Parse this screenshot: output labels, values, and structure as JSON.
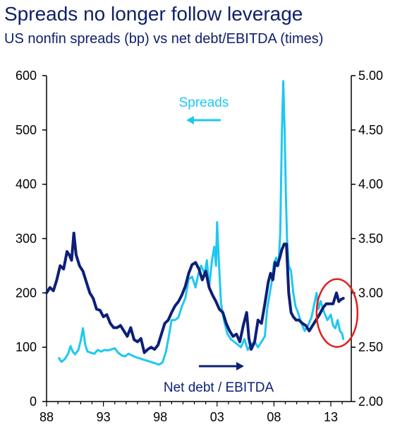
{
  "title": "Spreads no longer follow leverage",
  "subtitle": "US nonfin spreads (bp) vs net debt/EBITDA (times)",
  "colors": {
    "title": "#10206b",
    "spreads": "#1ec8f0",
    "net_debt": "#0d1f78",
    "circle": "#e01e1e",
    "axis": "#000000"
  },
  "chart_data": {
    "type": "line",
    "title": "Spreads no longer follow leverage",
    "subtitle": "US nonfin spreads (bp) vs net debt/EBITDA (times)",
    "x_ticks": [
      "88",
      "93",
      "98",
      "03",
      "08",
      "13"
    ],
    "x_range": [
      1988,
      2014.8
    ],
    "y_left": {
      "ticks": [
        "0",
        "100",
        "200",
        "300",
        "400",
        "500",
        "600"
      ],
      "range": [
        0,
        600
      ]
    },
    "y_right": {
      "ticks": [
        "2.00",
        "2.50",
        "3.00",
        "3.50",
        "4.00",
        "4.50",
        "5.00"
      ],
      "range": [
        2.0,
        5.0
      ]
    },
    "annotations": {
      "spreads_label": "Spreads",
      "net_debt_label": "Net debt / EBITDA"
    },
    "highlight": {
      "x_center": 2013.55,
      "y_center_left": 163
    },
    "series": [
      {
        "name": "Spreads",
        "axis": "left",
        "x": [
          1989.1,
          1989.3,
          1989.6,
          1989.9,
          1990.1,
          1990.3,
          1990.5,
          1990.8,
          1991.0,
          1991.2,
          1991.4,
          1991.6,
          1991.9,
          1992.2,
          1992.5,
          1992.8,
          1993.1,
          1993.4,
          1993.7,
          1994.0,
          1994.3,
          1994.6,
          1994.9,
          1995.2,
          1995.5,
          1995.8,
          1996.1,
          1996.4,
          1996.7,
          1997.0,
          1997.3,
          1997.6,
          1997.9,
          1998.2,
          1998.5,
          1998.75,
          1999.0,
          1999.3,
          1999.6,
          1999.9,
          2000.2,
          2000.5,
          2000.8,
          2001.1,
          2001.35,
          2001.6,
          2001.9,
          2002.1,
          2002.3,
          2002.55,
          2002.75,
          2002.9,
          2003.0,
          2003.15,
          2003.35,
          2003.6,
          2003.9,
          2004.2,
          2004.5,
          2004.8,
          2005.1,
          2005.4,
          2005.7,
          2006.0,
          2006.3,
          2006.6,
          2006.9,
          2007.2,
          2007.4,
          2007.6,
          2007.8,
          2008.0,
          2008.2,
          2008.4,
          2008.55,
          2008.7,
          2008.82,
          2008.95,
          2009.05,
          2009.15,
          2009.3,
          2009.5,
          2009.7,
          2009.9,
          2010.1,
          2010.4,
          2010.7,
          2011.0,
          2011.3,
          2011.6,
          2011.75,
          2011.9,
          2012.1,
          2012.4,
          2012.7,
          2013.0,
          2013.2,
          2013.4,
          2013.6,
          2013.8,
          2014.0,
          2014.1
        ],
        "values": [
          80,
          73,
          78,
          88,
          102,
          92,
          87,
          95,
          112,
          135,
          105,
          92,
          90,
          88,
          95,
          92,
          95,
          94,
          96,
          98,
          90,
          85,
          83,
          88,
          85,
          82,
          80,
          78,
          76,
          74,
          72,
          70,
          68,
          72,
          92,
          120,
          150,
          150,
          155,
          175,
          190,
          225,
          230,
          210,
          235,
          250,
          235,
          260,
          210,
          260,
          285,
          250,
          330,
          260,
          180,
          150,
          125,
          115,
          110,
          105,
          100,
          115,
          95,
          105,
          110,
          100,
          110,
          120,
          170,
          195,
          220,
          255,
          265,
          250,
          310,
          500,
          590,
          490,
          380,
          300,
          250,
          240,
          200,
          175,
          165,
          145,
          130,
          140,
          155,
          185,
          200,
          170,
          185,
          165,
          150,
          160,
          140,
          135,
          150,
          130,
          125,
          115
        ]
      },
      {
        "name": "Net debt / EBITDA",
        "axis": "right",
        "x": [
          1988.0,
          1988.3,
          1988.6,
          1988.9,
          1989.2,
          1989.5,
          1989.8,
          1990.0,
          1990.2,
          1990.4,
          1990.6,
          1990.9,
          1991.2,
          1991.5,
          1991.8,
          1992.1,
          1992.4,
          1992.7,
          1993.0,
          1993.3,
          1993.6,
          1993.9,
          1994.2,
          1994.5,
          1994.8,
          1995.1,
          1995.4,
          1995.7,
          1996.0,
          1996.3,
          1996.6,
          1996.9,
          1997.2,
          1997.5,
          1997.8,
          1998.1,
          1998.4,
          1998.7,
          1999.0,
          1999.3,
          1999.6,
          1999.9,
          2000.2,
          2000.5,
          2000.8,
          2001.1,
          2001.4,
          2001.7,
          2002.0,
          2002.3,
          2002.6,
          2002.9,
          2003.2,
          2003.5,
          2003.8,
          2004.1,
          2004.4,
          2004.7,
          2005.0,
          2005.3,
          2005.6,
          2005.8,
          2006.0,
          2006.3,
          2006.6,
          2006.9,
          2007.2,
          2007.5,
          2007.7,
          2007.9,
          2008.1,
          2008.3,
          2008.5,
          2008.7,
          2008.9,
          2009.1,
          2009.3,
          2009.5,
          2009.7,
          2009.95,
          2010.2,
          2010.5,
          2010.8,
          2011.1,
          2011.4,
          2011.7,
          2012.0,
          2012.3,
          2012.6,
          2012.9,
          2013.2,
          2013.5,
          2013.7,
          2013.9,
          2014.1
        ],
        "values": [
          3.0,
          3.05,
          3.02,
          3.12,
          3.25,
          3.22,
          3.38,
          3.35,
          3.3,
          3.55,
          3.35,
          3.25,
          3.2,
          3.1,
          3.0,
          2.95,
          2.85,
          2.84,
          2.78,
          2.8,
          2.72,
          2.68,
          2.68,
          2.7,
          2.65,
          2.6,
          2.68,
          2.57,
          2.55,
          2.58,
          2.45,
          2.48,
          2.5,
          2.48,
          2.52,
          2.62,
          2.72,
          2.75,
          2.82,
          2.88,
          2.92,
          2.98,
          3.06,
          3.18,
          3.26,
          3.28,
          3.22,
          3.12,
          3.2,
          3.05,
          2.98,
          2.92,
          2.85,
          2.82,
          2.72,
          2.65,
          2.6,
          2.62,
          2.55,
          2.7,
          2.82,
          2.58,
          2.48,
          2.55,
          2.75,
          2.72,
          2.9,
          3.1,
          3.18,
          3.12,
          3.28,
          3.25,
          3.32,
          3.4,
          3.45,
          3.45,
          3.0,
          2.82,
          2.78,
          2.75,
          2.75,
          2.72,
          2.7,
          2.65,
          2.7,
          2.75,
          2.8,
          2.86,
          2.9,
          2.9,
          2.9,
          3.0,
          2.92,
          2.94,
          2.95
        ]
      }
    ]
  }
}
